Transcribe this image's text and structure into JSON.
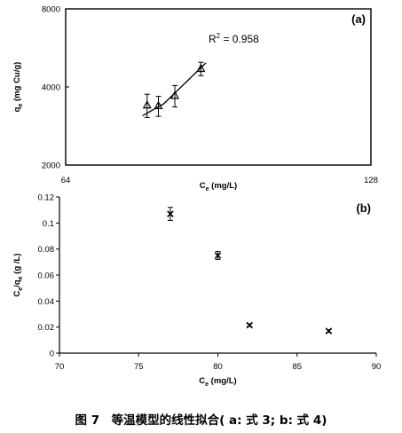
{
  "chart_data": [
    {
      "panel_label": "(a)",
      "type": "scatter",
      "x_tick_labels": [
        "64",
        "128"
      ],
      "x_log_base": 2,
      "xlim": [
        64,
        128
      ],
      "ylim": [
        2000,
        8000
      ],
      "yticks": [
        2000,
        4000,
        8000
      ],
      "y_log_base": 2,
      "xlabel_main": "C",
      "xlabel_sub": "e",
      "xlabel_rest": " (mg/L)",
      "ylabel_main": "q",
      "ylabel_sub": "e",
      "ylabel_rest": " (mg Cu/g)",
      "series": [
        {
          "marker": "triangle",
          "points": [
            {
              "x": 77,
              "y": 3400,
              "err": 350
            },
            {
              "x": 79,
              "y": 3380,
              "err": 300
            },
            {
              "x": 82,
              "y": 3700,
              "err": 350
            },
            {
              "x": 87,
              "y": 4700,
              "err": 280
            }
          ]
        }
      ],
      "fit_line": [
        [
          76.2,
          3100
        ],
        [
          80,
          3450
        ],
        [
          88,
          4950
        ]
      ],
      "annotation_main": "R",
      "annotation_sup": "2",
      "annotation_rest": " = 0.958",
      "grid": false
    },
    {
      "panel_label": "(b)",
      "type": "scatter",
      "xlim": [
        70,
        90
      ],
      "xticks": [
        70,
        75,
        80,
        85,
        90
      ],
      "ylim": [
        0,
        0.12
      ],
      "yticks": [
        0,
        0.02,
        0.04,
        0.06,
        0.08,
        0.1,
        0.12
      ],
      "y_tick_labels": [
        "0",
        "0.02",
        "0.04",
        "0.06",
        "0.08",
        "0.1",
        "0.12"
      ],
      "xlabel_main": "C",
      "xlabel_sub": "e",
      "xlabel_rest": " (mg/L)",
      "ylabel_main": "C",
      "ylabel_sub": "e",
      "ylabel_mid": "/q",
      "ylabel_sub2": "e",
      "ylabel_rest": " (g /L)",
      "series": [
        {
          "marker": "x",
          "points": [
            {
              "x": 77,
              "y": 0.107,
              "err": 0.005
            },
            {
              "x": 80,
              "y": 0.075,
              "err": 0.003
            },
            {
              "x": 82,
              "y": 0.0215,
              "err": 0.001
            },
            {
              "x": 87,
              "y": 0.017,
              "err": 0.001
            }
          ]
        }
      ],
      "grid": false
    }
  ],
  "caption": "图 7　等温模型的线性拟合( a: 式 3; b: 式 4)"
}
